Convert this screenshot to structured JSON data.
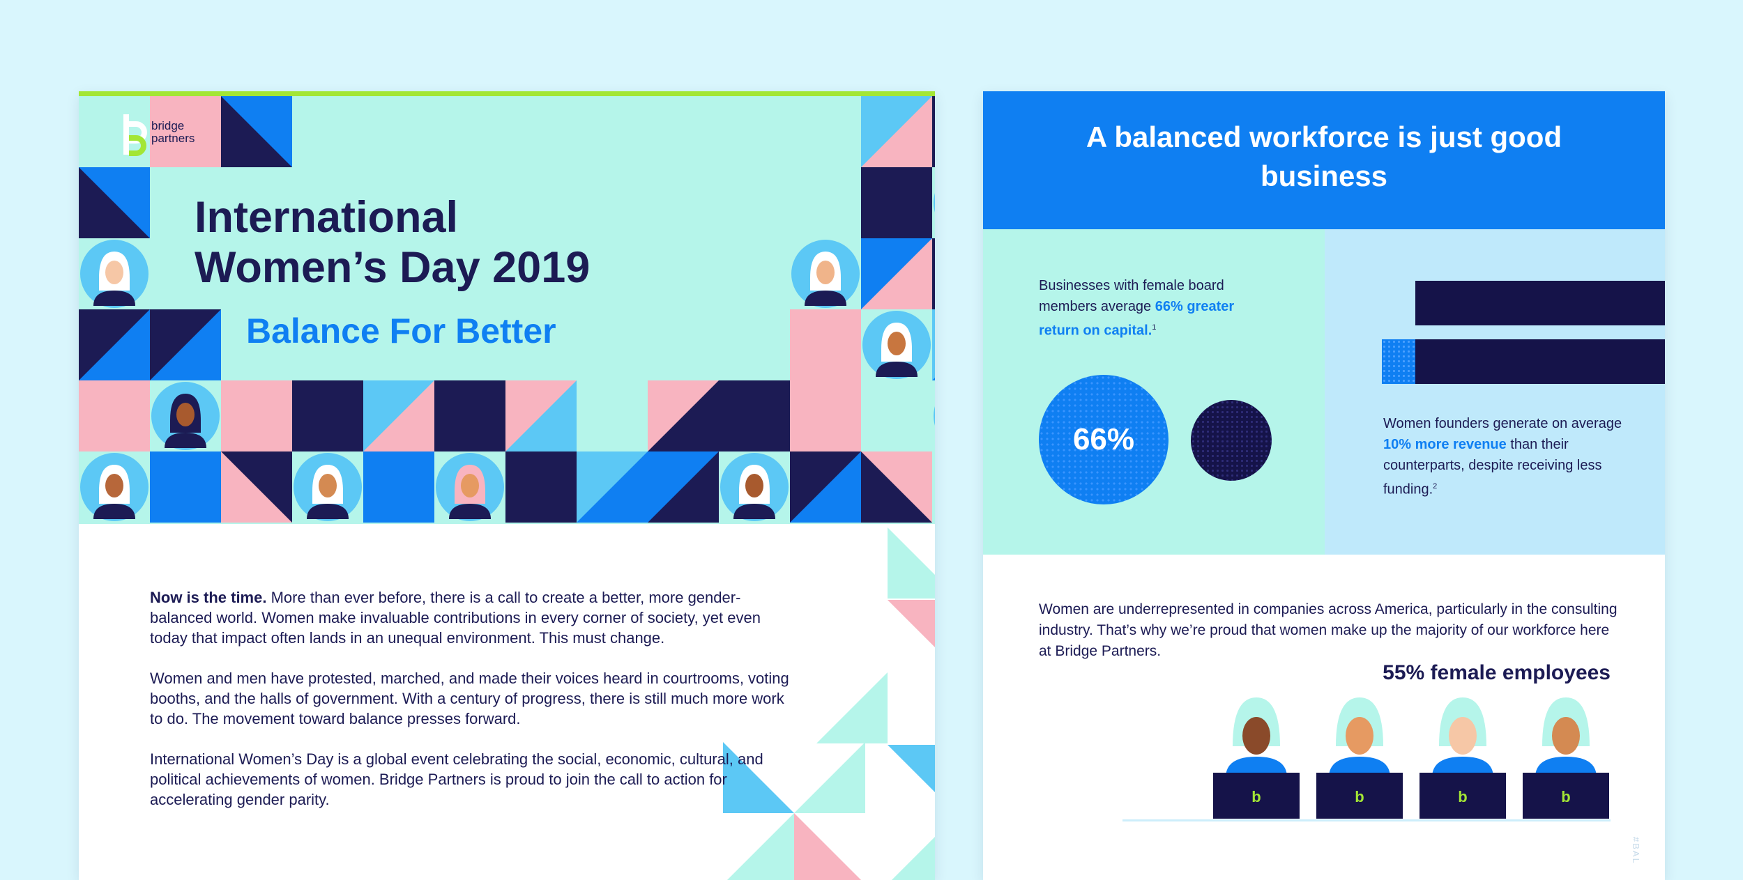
{
  "left": {
    "logo": {
      "line1": "bridge",
      "line2": "partners"
    },
    "title": "International Women’s Day 2019",
    "subtitle": "Balance For Better",
    "paragraphs": [
      {
        "lead": "Now is the time.",
        "text": " More than ever before, there is a call to create a better, more gender-balanced world. Women make invaluable contributions in every corner of society, yet even today that impact often lands in an unequal environment. This must change."
      },
      {
        "lead": "",
        "text": "Women and men have protested, marched, and made their voices heard in courtrooms, voting booths, and the halls of government. With a century of progress, there is still much more work to do. The movement toward balance presses forward."
      },
      {
        "lead": "",
        "text": "International Women’s Day is a global event celebrating the social, economic, cultural, and political achievements of women. Bridge Partners is proud to join the call to action for accelerating gender parity."
      }
    ]
  },
  "right": {
    "heading": "A balanced workforce is just good business",
    "stat1": {
      "text": "Businesses with female board members average ",
      "highlight": "66% greater return on capital.",
      "footnote": "1"
    },
    "stat1_circle": "66%",
    "stat2": {
      "text1": "Women founders generate on average ",
      "highlight": "10% more revenue",
      "text2": " than their counterparts, despite receiving less funding.",
      "footnote": "2"
    },
    "body": "Women are underrepresented in companies across America, particularly in the consulting industry. That’s why we’re proud that women make up the majority of our workforce here at Bridge Partners.",
    "employees_title": "55% female employees",
    "laptop_logo": "b",
    "hashtag": "#BAL"
  },
  "colors": {
    "navy": "#1c1b54",
    "blue": "#0f7ff2",
    "mint": "#b5f5ea",
    "pink": "#f8b4c0",
    "sky": "#5cc8f5",
    "green": "#a3e635"
  }
}
